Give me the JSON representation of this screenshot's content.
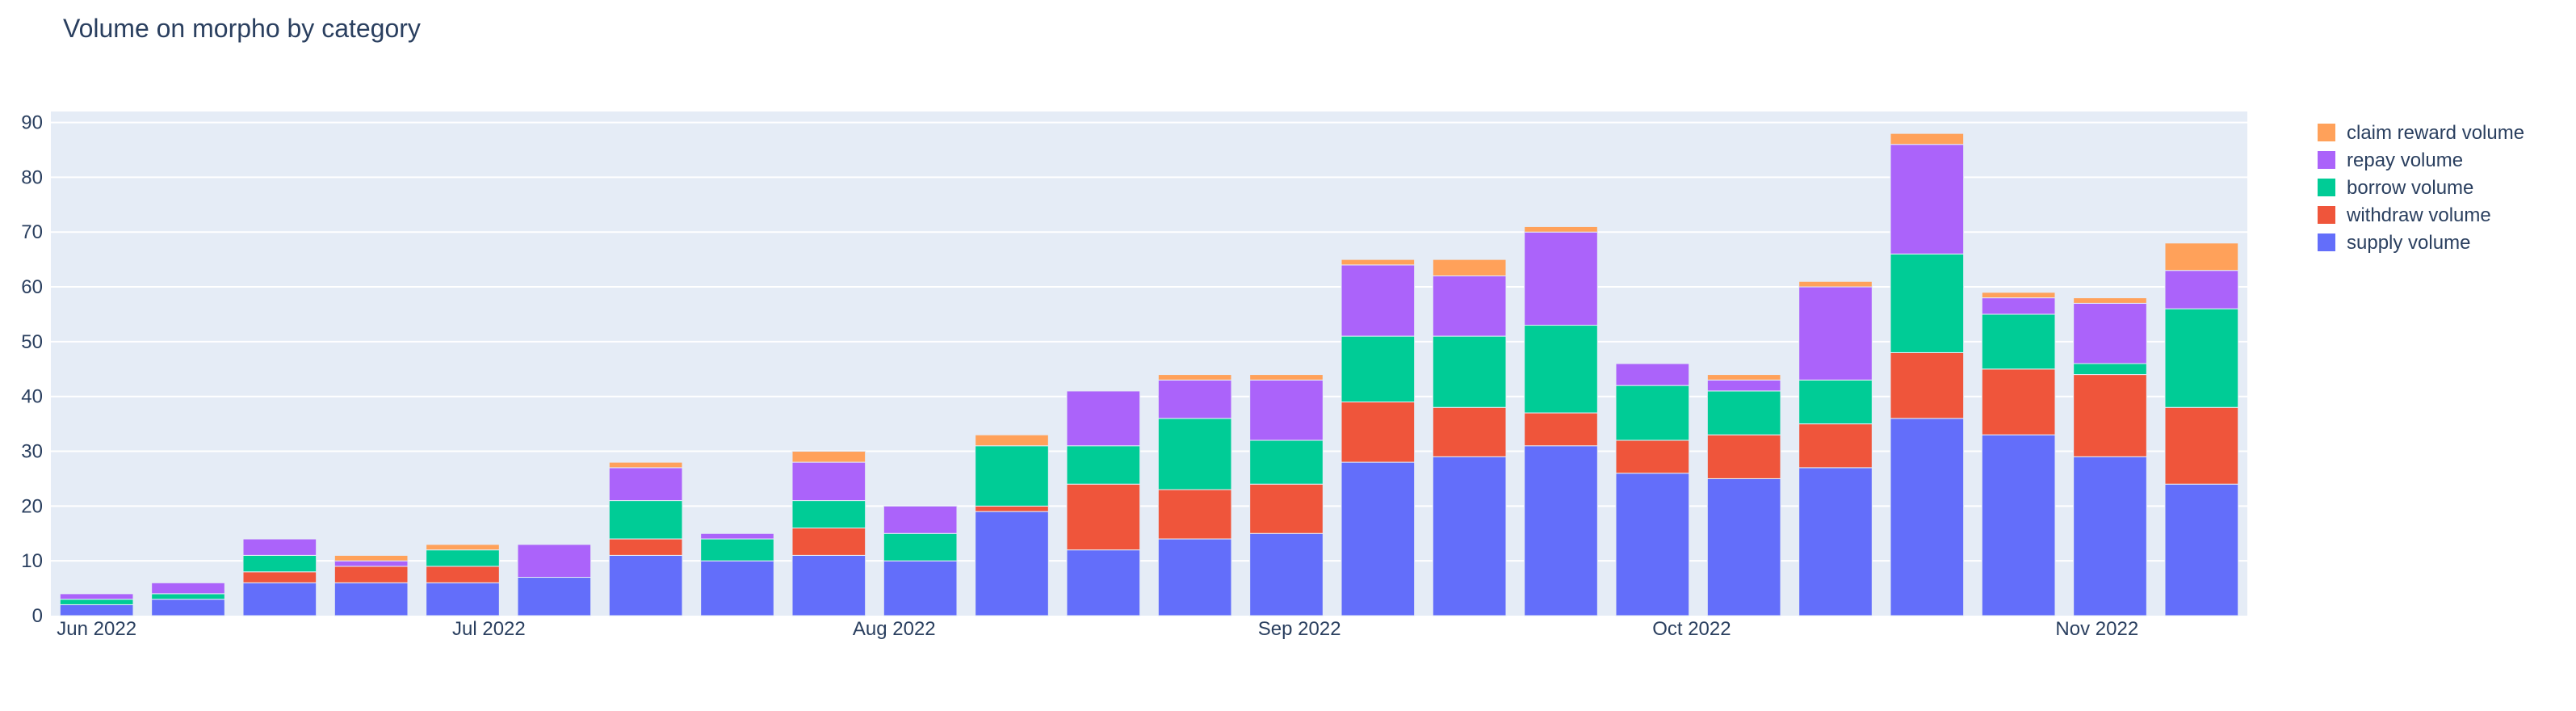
{
  "chart_data": {
    "type": "bar",
    "barmode": "stack",
    "title": "Volume on morpho by category",
    "xlabel": "",
    "ylabel": "",
    "ylim": [
      0,
      92
    ],
    "y_ticks": [
      0,
      10,
      20,
      30,
      40,
      50,
      60,
      70,
      80,
      90
    ],
    "x_ticks": [
      {
        "label": "Jun 2022",
        "date": "2022-06-01"
      },
      {
        "label": "Jul 2022",
        "date": "2022-07-01"
      },
      {
        "label": "Aug 2022",
        "date": "2022-08-01"
      },
      {
        "label": "Sep 2022",
        "date": "2022-09-01"
      },
      {
        "label": "Oct 2022",
        "date": "2022-10-01"
      },
      {
        "label": "Nov 2022",
        "date": "2022-11-01"
      }
    ],
    "x": [
      "2022-06-01",
      "2022-06-08",
      "2022-06-15",
      "2022-06-22",
      "2022-06-29",
      "2022-07-06",
      "2022-07-13",
      "2022-07-20",
      "2022-07-27",
      "2022-08-03",
      "2022-08-10",
      "2022-08-17",
      "2022-08-24",
      "2022-08-31",
      "2022-09-07",
      "2022-09-14",
      "2022-09-21",
      "2022-09-28",
      "2022-10-05",
      "2022-10-12",
      "2022-10-19",
      "2022-10-26",
      "2022-11-02",
      "2022-11-09"
    ],
    "series": [
      {
        "name": "supply volume",
        "color": "#636efa",
        "values": [
          2,
          3,
          6,
          6,
          6,
          7,
          11,
          10,
          11,
          10,
          19,
          12,
          14,
          15,
          28,
          29,
          31,
          26,
          25,
          27,
          36,
          33,
          29,
          24
        ]
      },
      {
        "name": "withdraw volume",
        "color": "#ef553b",
        "values": [
          0,
          0,
          2,
          3,
          3,
          0,
          3,
          0,
          5,
          0,
          1,
          12,
          9,
          9,
          11,
          9,
          6,
          6,
          8,
          8,
          12,
          12,
          15,
          14
        ]
      },
      {
        "name": "borrow volume",
        "color": "#00cc96",
        "values": [
          1,
          1,
          3,
          0,
          3,
          0,
          7,
          4,
          5,
          5,
          11,
          7,
          13,
          8,
          12,
          13,
          16,
          10,
          8,
          8,
          18,
          10,
          2,
          18
        ]
      },
      {
        "name": "repay volume",
        "color": "#ab63fa",
        "values": [
          1,
          2,
          3,
          1,
          0,
          6,
          6,
          1,
          7,
          5,
          0,
          10,
          7,
          11,
          13,
          11,
          17,
          4,
          2,
          17,
          20,
          3,
          11,
          7
        ]
      },
      {
        "name": "claim reward volume",
        "color": "#ffa15a",
        "values": [
          0,
          0,
          0,
          1,
          1,
          0,
          1,
          0,
          2,
          0,
          2,
          0,
          1,
          1,
          1,
          3,
          1,
          0,
          1,
          1,
          2,
          1,
          1,
          5
        ]
      }
    ],
    "legend_order": [
      "claim reward volume",
      "repay volume",
      "borrow volume",
      "withdraw volume",
      "supply volume"
    ],
    "legend_position": "right",
    "grid": true,
    "plot_bgcolor": "#e5ecf6"
  }
}
